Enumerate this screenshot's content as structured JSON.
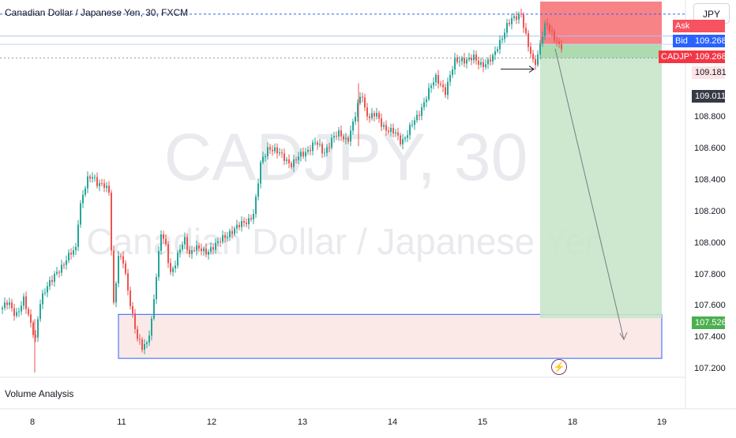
{
  "header": {
    "symbol_title": "Canadian Dollar / Japanese Yen, 30, FXCM",
    "currency_button": "JPY"
  },
  "watermark": {
    "symbol": "CADJPY, 30",
    "description": "Canadian Dollar / Japanese Yen"
  },
  "indicator_label": "Volume Analysis",
  "icons": {
    "alert": "lightning-icon"
  },
  "colors": {
    "up": "#26a69a",
    "down": "#ef5350",
    "stop_zone": "#f77c80",
    "target_zone": "#c8e6c9",
    "demand_zone_fill": "#fbe9e7",
    "demand_zone_border": "#2962ff",
    "ask_tag": "#f7525f",
    "bid_tag": "#2962ff",
    "last_tag": "#f23645",
    "profit_tag": "#4caf50",
    "dark_tag": "#363a45",
    "pink_tag": "#fde3e5"
  },
  "price_tags": {
    "ask": {
      "label": "Ask",
      "value": ""
    },
    "bid": {
      "label": "Bid",
      "value": "109.268"
    },
    "last": {
      "label": "CADJPY",
      "value": "109.268"
    },
    "pink_value": "109.181",
    "dark_value": "109.011",
    "target_value": "107.526"
  },
  "chart_data": {
    "type": "candlestick",
    "title": "Canadian Dollar / Japanese Yen, 30, FXCM",
    "xlabel": "",
    "ylabel": "",
    "y_ticks": [
      "109.000",
      "108.800",
      "108.600",
      "108.400",
      "108.200",
      "108.000",
      "107.800",
      "107.600",
      "107.400",
      "107.200"
    ],
    "x_ticks": [
      "8",
      "11",
      "12",
      "13",
      "14",
      "15",
      "18",
      "19"
    ],
    "ylim": [
      107.15,
      109.55
    ],
    "grid": false,
    "price_path": [
      [
        0,
        107.58
      ],
      [
        10,
        107.62
      ],
      [
        20,
        107.55
      ],
      [
        30,
        107.64
      ],
      [
        38,
        107.5
      ],
      [
        45,
        107.4
      ],
      [
        50,
        107.62
      ],
      [
        60,
        107.72
      ],
      [
        70,
        107.82
      ],
      [
        80,
        107.85
      ],
      [
        90,
        107.95
      ],
      [
        96,
        107.98
      ],
      [
        100,
        108.2
      ],
      [
        106,
        108.32
      ],
      [
        112,
        108.42
      ],
      [
        118,
        108.44
      ],
      [
        124,
        108.38
      ],
      [
        132,
        108.36
      ],
      [
        138,
        108.33
      ],
      [
        144,
        107.62
      ],
      [
        150,
        107.92
      ],
      [
        156,
        107.88
      ],
      [
        162,
        107.7
      ],
      [
        168,
        107.55
      ],
      [
        174,
        107.4
      ],
      [
        180,
        107.33
      ],
      [
        186,
        107.36
      ],
      [
        192,
        107.52
      ],
      [
        198,
        107.8
      ],
      [
        204,
        108.06
      ],
      [
        210,
        107.98
      ],
      [
        216,
        107.82
      ],
      [
        222,
        107.88
      ],
      [
        228,
        107.96
      ],
      [
        234,
        108.02
      ],
      [
        240,
        107.94
      ],
      [
        246,
        107.98
      ],
      [
        252,
        107.96
      ],
      [
        260,
        107.94
      ],
      [
        268,
        107.98
      ],
      [
        276,
        108.0
      ],
      [
        284,
        108.04
      ],
      [
        292,
        108.08
      ],
      [
        300,
        108.1
      ],
      [
        308,
        108.13
      ],
      [
        316,
        108.16
      ],
      [
        322,
        108.2
      ],
      [
        326,
        108.35
      ],
      [
        330,
        108.5
      ],
      [
        334,
        108.56
      ],
      [
        340,
        108.62
      ],
      [
        350,
        108.58
      ],
      [
        360,
        108.55
      ],
      [
        370,
        108.5
      ],
      [
        380,
        108.56
      ],
      [
        390,
        108.6
      ],
      [
        400,
        108.64
      ],
      [
        410,
        108.58
      ],
      [
        420,
        108.66
      ],
      [
        430,
        108.7
      ],
      [
        440,
        108.66
      ],
      [
        446,
        108.74
      ],
      [
        452,
        108.85
      ],
      [
        458,
        108.98
      ],
      [
        462,
        108.86
      ],
      [
        468,
        108.8
      ],
      [
        476,
        108.82
      ],
      [
        484,
        108.76
      ],
      [
        492,
        108.72
      ],
      [
        500,
        108.7
      ],
      [
        508,
        108.65
      ],
      [
        514,
        108.69
      ],
      [
        520,
        108.74
      ],
      [
        528,
        108.8
      ],
      [
        534,
        108.87
      ],
      [
        540,
        108.94
      ],
      [
        546,
        109.0
      ],
      [
        552,
        109.05
      ],
      [
        558,
        109.02
      ],
      [
        564,
        108.97
      ],
      [
        570,
        109.06
      ],
      [
        576,
        109.16
      ],
      [
        584,
        109.18
      ],
      [
        592,
        109.16
      ],
      [
        600,
        109.18
      ],
      [
        608,
        109.15
      ],
      [
        616,
        109.14
      ],
      [
        624,
        109.18
      ],
      [
        630,
        109.26
      ],
      [
        636,
        109.32
      ],
      [
        642,
        109.38
      ],
      [
        648,
        109.42
      ],
      [
        654,
        109.45
      ],
      [
        660,
        109.47
      ],
      [
        664,
        109.36
      ],
      [
        668,
        109.27
      ],
      [
        672,
        109.2
      ],
      [
        676,
        109.14
      ],
      [
        680,
        109.18
      ],
      [
        684,
        109.28
      ],
      [
        688,
        109.36
      ],
      [
        692,
        109.4
      ],
      [
        696,
        109.35
      ],
      [
        700,
        109.32
      ],
      [
        704,
        109.3
      ],
      [
        708,
        109.27
      ],
      [
        711,
        109.26
      ]
    ],
    "position": {
      "entry": 109.268,
      "stop": 109.54,
      "target": 107.526,
      "x_start": 684,
      "x_end": 838
    },
    "demand_zone": {
      "top": 107.55,
      "bottom": 107.27,
      "x_start": 150,
      "x_end": 838
    },
    "arrow_path": [
      [
        703,
        109.24
      ],
      [
        790,
        107.39
      ]
    ],
    "small_arrow": [
      [
        634,
        109.11
      ],
      [
        676,
        109.11
      ]
    ],
    "reference_lines": [
      109.46,
      109.32,
      109.268,
      109.181
    ]
  }
}
